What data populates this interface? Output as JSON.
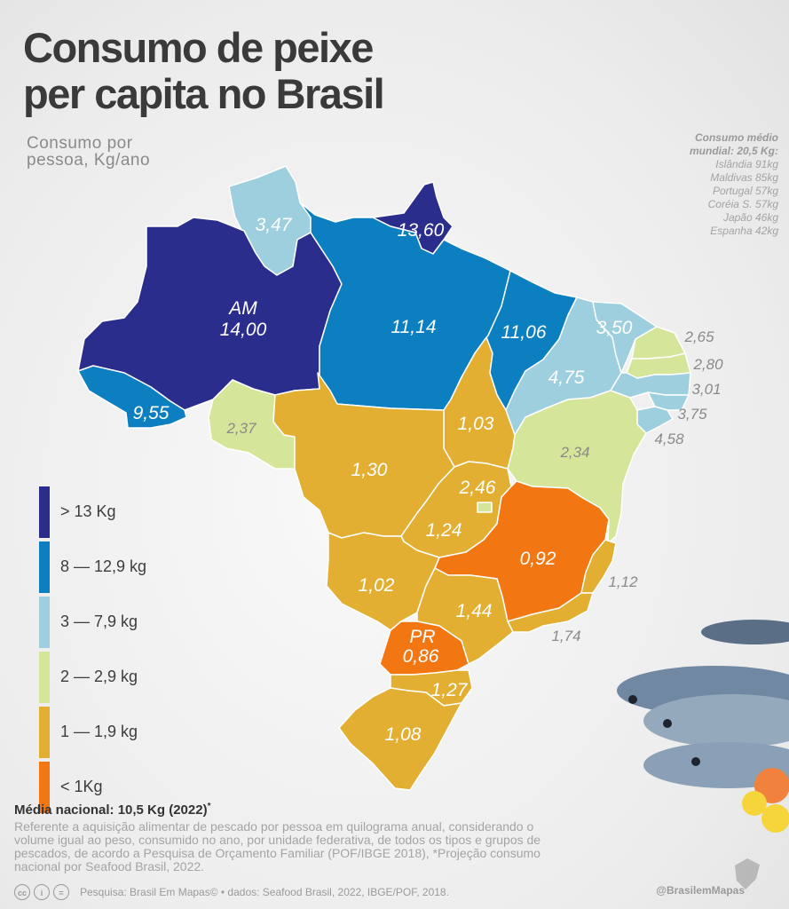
{
  "title": {
    "line1": "Consumo de peixe",
    "line2": "per capita no Brasil"
  },
  "subtitle": {
    "line1": "Consumo por",
    "line2": "pessoa, Kg/ano"
  },
  "world": {
    "heading1": "Consumo médio",
    "heading2": "mundial: 20,5 Kg:",
    "items": [
      "Islândia 91kg",
      "Maldivas 85kg",
      "Portugal 57kg",
      "Coréia S. 57kg",
      "Japão 46kg",
      "Espanha 42kg"
    ]
  },
  "colors": {
    "gt13": "#2b2d8c",
    "c8_12": "#0b7fc0",
    "c3_7": "#9dcfdf",
    "c2_2": "#d5e69a",
    "c1_1": "#e2af33",
    "lt1": "#f27712"
  },
  "legend": [
    {
      "label": "> 13 Kg",
      "color": "#2b2d8c"
    },
    {
      "label": "8 — 12,9 kg",
      "color": "#0b7fc0"
    },
    {
      "label": "3 — 7,9 kg",
      "color": "#9dcfdf"
    },
    {
      "label": "2 — 2,9 kg",
      "color": "#d5e69a"
    },
    {
      "label": "1 — 1,9 kg",
      "color": "#e2af33"
    },
    {
      "label": "< 1Kg",
      "color": "#f27712"
    }
  ],
  "states": {
    "AM": {
      "abbr": "AM",
      "value": "14,00"
    },
    "RR": {
      "value": "3,47"
    },
    "AP": {
      "value": "13,60"
    },
    "PA": {
      "value": "11,14"
    },
    "MA": {
      "value": "11,06"
    },
    "CE": {
      "value": "3,50"
    },
    "PI": {
      "value": "4,75"
    },
    "AC": {
      "value": "9,55"
    },
    "RO": {
      "value": "2,37"
    },
    "MT": {
      "value": "1,30"
    },
    "TO": {
      "value": "1,03"
    },
    "BA": {
      "value": "2,34"
    },
    "DF": {
      "value": "2,46"
    },
    "GO": {
      "value": "1,24"
    },
    "MG": {
      "value": "0,92"
    },
    "MS": {
      "value": "1,02"
    },
    "SP": {
      "value": "1,44"
    },
    "PR": {
      "abbr": "PR",
      "value": "0,86"
    },
    "SC": {
      "value": "1,27"
    },
    "RS": {
      "value": "1,08"
    },
    "RN": {
      "value": "2,65"
    },
    "PB": {
      "value": "2,80"
    },
    "PE": {
      "value": "3,01"
    },
    "AL": {
      "value": "3,75"
    },
    "SE": {
      "value": "4,58"
    },
    "ES": {
      "value": "1,12"
    },
    "RJ": {
      "value": "1,74"
    }
  },
  "national": {
    "text": "Média nacional: 10,5 Kg (2022)",
    "mark": "*"
  },
  "note": "Referente a aquisição alimentar de pescado por pessoa em quilograma anual, considerando o volume igual ao peso, consumido no ano, por unidade federativa, de todos os tipos e grupos de pescados, de acordo a Pesquisa de Orçamento Familiar (POF/IBGE 2018), *Projeção consumo nacional por Seafood Brasil, 2022.",
  "footer": {
    "cc": "cc",
    "by": "i",
    "nd": "=",
    "source": "Pesquisa: Brasil Em Mapas© • dados: Seafood Brasil, 2022, IBGE/POF, 2018."
  },
  "handle": "@BrasilemMapas"
}
